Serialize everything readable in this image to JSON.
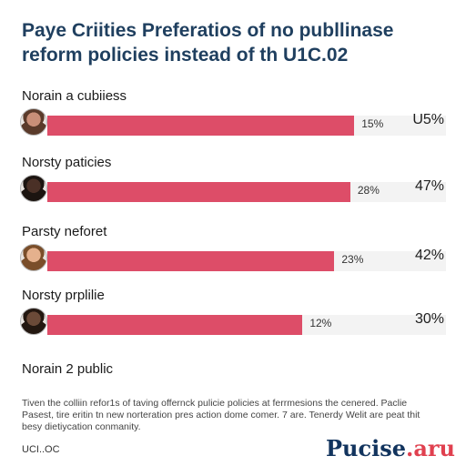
{
  "title": "Paye Criities Preferatios of no publlinase reform policies instead of th U1C.02",
  "chart_data": {
    "type": "bar",
    "orientation": "horizontal",
    "categories": [
      "Norain a cubiiess",
      "Norsty paticies",
      "Parsty neforet",
      "Norsty prplilie"
    ],
    "series": [
      {
        "values": [
          77,
          76,
          72,
          64
        ],
        "value_labels": [
          "15%",
          "28%",
          "23%",
          "12%"
        ],
        "right_labels": [
          "U5%",
          "47%",
          "42%",
          "30%"
        ]
      }
    ],
    "xlim": [
      0,
      100
    ],
    "bar_color": "#dd4d68",
    "track_color": "#f3f3f3"
  },
  "avatars": [
    {
      "icon": "person-avatar-icon",
      "bg": "#c98f78",
      "hair": "#5a3a2a"
    },
    {
      "icon": "person-avatar-icon",
      "bg": "#4a3026",
      "hair": "#1c1410"
    },
    {
      "icon": "person-avatar-icon",
      "bg": "#e5b18d",
      "hair": "#7a4e2a"
    },
    {
      "icon": "person-avatar-icon",
      "bg": "#6b4a38",
      "hair": "#231710"
    }
  ],
  "extra_label": "Norain 2 public",
  "footnote": "Tiven the colliin refor1s of taving offernck pulicie policies at ferrmesions the cenered. Paclie Pasest, tire eritin tn new norteration pres action dome comer. 7 are. Tenerdy Welit are peat thit besy dietiycation conmanity.",
  "source": "UCI..OC",
  "brand": {
    "main": "Pucise",
    "accent": ".aru"
  }
}
